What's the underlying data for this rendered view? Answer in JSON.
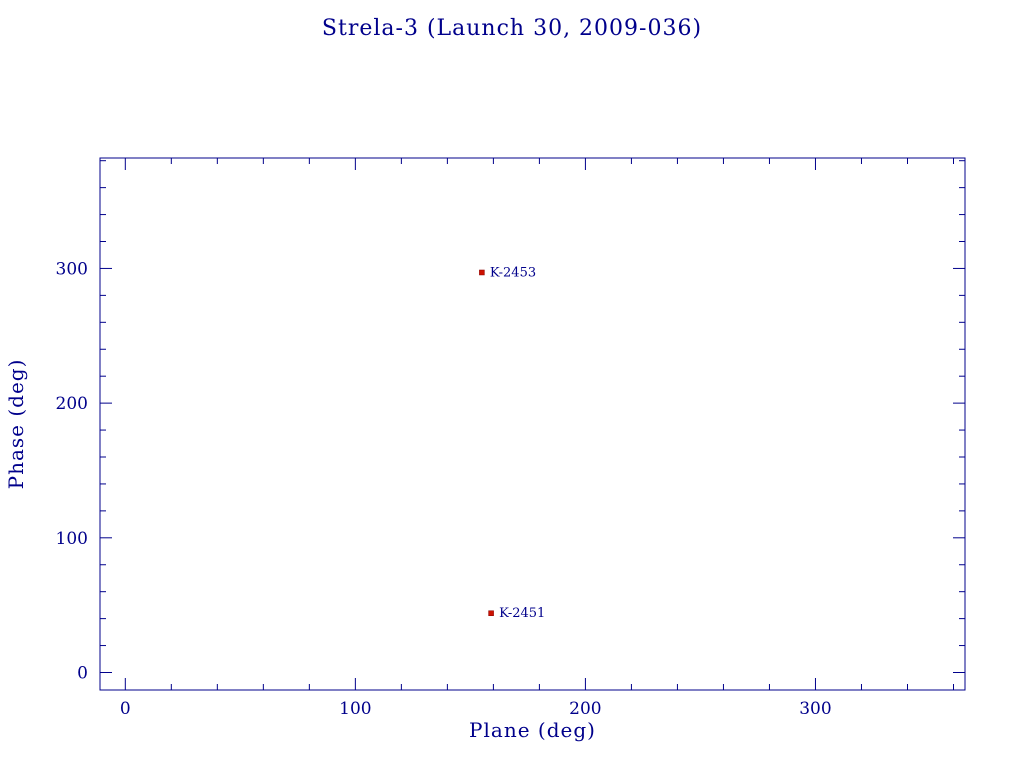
{
  "chart_data": {
    "type": "scatter",
    "title": "Strela-3 (Launch 30, 2009-036)",
    "xlabel": "Plane (deg)",
    "ylabel": "Phase (deg)",
    "xlim": [
      -11,
      365
    ],
    "ylim": [
      -13,
      382
    ],
    "x_major_ticks": [
      0,
      100,
      200,
      300
    ],
    "y_major_ticks": [
      0,
      100,
      200,
      300
    ],
    "minor_tick_step": 20,
    "grid": false,
    "legend": "none",
    "points": [
      {
        "label": "K-2453",
        "x": 155,
        "y": 297
      },
      {
        "label": "K-2451",
        "x": 159,
        "y": 44
      }
    ],
    "marker": {
      "shape": "square",
      "size": 5,
      "color": "#cc1100"
    },
    "colors": {
      "axis": "#00008b",
      "text": "#00008b",
      "marker": "#cc1100",
      "background": "#ffffff"
    }
  }
}
